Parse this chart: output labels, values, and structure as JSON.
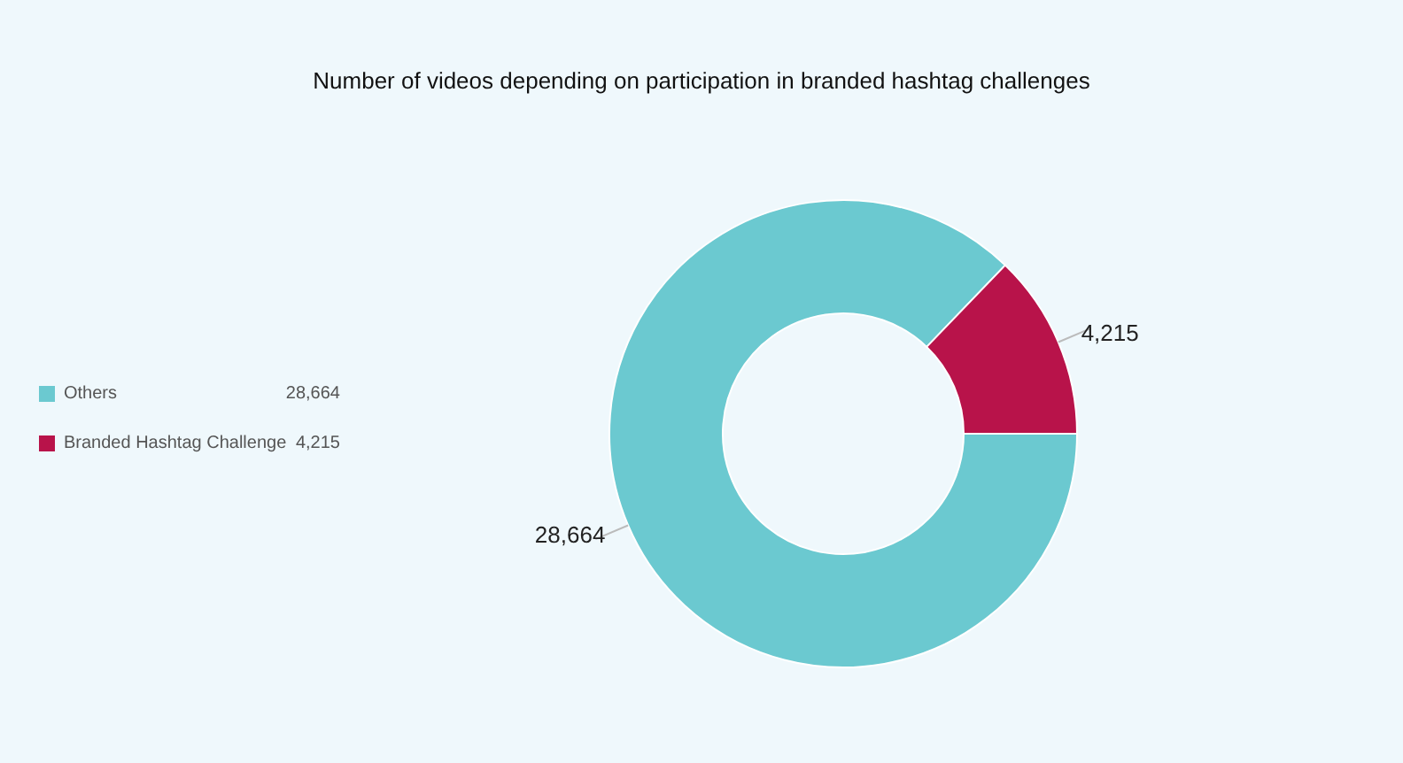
{
  "chart_data": {
    "type": "donut",
    "title": "Number of videos depending on participation in branded hashtag challenges",
    "categories": [
      "Others",
      "Branded Hashtag Challenge"
    ],
    "values": [
      28664,
      4215
    ],
    "colors": [
      "#6bc9d0",
      "#b8134a"
    ],
    "value_labels": [
      "28,664",
      "4,215"
    ],
    "legend": "left"
  }
}
